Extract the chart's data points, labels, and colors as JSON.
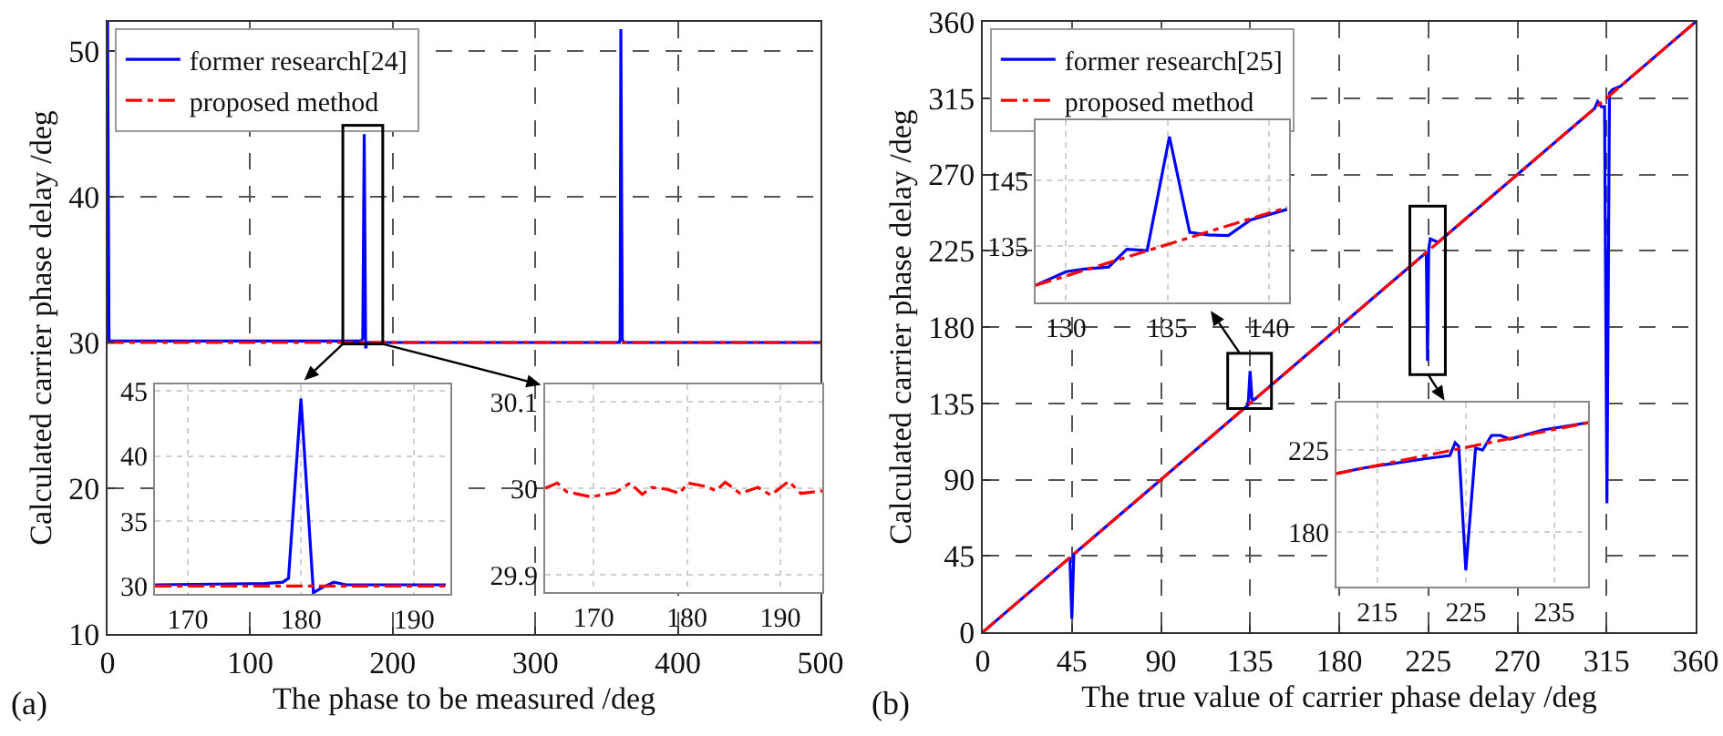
{
  "chart_data": [
    {
      "type": "line",
      "xlabel": "The phase to be measured /deg",
      "ylabel": "Calculated carrier phase delay /deg",
      "annotations": [
        "(a)"
      ],
      "xlim": [
        0,
        500
      ],
      "ylim": [
        10,
        52
      ],
      "xticks": [
        0,
        100,
        200,
        300,
        400,
        500
      ],
      "yticks": [
        10,
        20,
        30,
        40,
        50
      ],
      "grid": true,
      "legend": "top left",
      "series": [
        {
          "name": "former research[24]",
          "color": "#0000ff",
          "line_style": "solid",
          "x": [
            0,
            1,
            178,
            179,
            180,
            181,
            182,
            359,
            359.5,
            360,
            361,
            362,
            500
          ],
          "values": [
            52,
            30.1,
            30.1,
            30.3,
            44.3,
            29.6,
            30,
            30,
            30.3,
            51.5,
            30.2,
            30,
            30
          ]
        },
        {
          "name": "proposed method",
          "color": "#ff0000",
          "line_style": "dashed",
          "x": [
            0,
            500
          ],
          "values": [
            30,
            30
          ]
        }
      ]
    },
    {
      "type": "line",
      "xlim": [
        167.1,
        193.2
      ],
      "ylim": [
        29.4,
        45.5
      ],
      "xticks": [
        170,
        180,
        190
      ],
      "yticks": [
        30,
        35,
        40,
        45
      ],
      "grid": true,
      "series": [
        {
          "color": "#0000ff",
          "line_style": "solid",
          "x": [
            167.1,
            176.8,
            178.4,
            178.9,
            180,
            181.1,
            181.9,
            182.9,
            184,
            192.8
          ],
          "values": [
            30.1,
            30.2,
            30.3,
            30.6,
            44.4,
            29.5,
            29.9,
            30.3,
            30.1,
            30.1
          ]
        },
        {
          "color": "#ff0000",
          "line_style": "dashed",
          "x": [
            167.1,
            192.8
          ],
          "values": [
            30,
            30
          ]
        }
      ]
    },
    {
      "type": "line",
      "xlim": [
        164.8,
        194.5
      ],
      "ylim": [
        29.88,
        30.12
      ],
      "xticks": [
        170,
        180,
        190
      ],
      "yticks": [
        29.9,
        30,
        30.1
      ],
      "grid": true,
      "series": [
        {
          "color": "#ff0000",
          "line_style": "dashed",
          "x": [
            164.8,
            166.1,
            167.1,
            169.7,
            172.3,
            173.9,
            175.2,
            176.2,
            177.8,
            179.2,
            180.1,
            182.1,
            183.1,
            184.1,
            185.7,
            187.6,
            189,
            190.9,
            192.2,
            194.5
          ],
          "values": [
            30,
            30.006,
            29.996,
            29.99,
            29.995,
            30.006,
            29.993,
            30.001,
            29.999,
            29.994,
            30.006,
            30.002,
            29.997,
            30.007,
            29.994,
            30.001,
            29.992,
            30.008,
            29.994,
            29.997
          ]
        }
      ]
    },
    {
      "type": "line",
      "xlabel": "The true value of carrier phase delay /deg",
      "ylabel": "Calculated carrier phase delay /deg",
      "annotations": [
        "(b)"
      ],
      "xlim": [
        0,
        360
      ],
      "ylim": [
        0,
        360
      ],
      "xticks": [
        0,
        45,
        90,
        135,
        180,
        225,
        270,
        315,
        360
      ],
      "yticks": [
        0,
        45,
        90,
        135,
        180,
        225,
        270,
        315,
        360
      ],
      "grid": true,
      "legend": "top left",
      "series": [
        {
          "name": "former research[25]",
          "color": "#0000ff",
          "line_style": "solid",
          "x": [
            0,
            44,
            45,
            46,
            134,
            135,
            136,
            137,
            224,
            224.6,
            225.2,
            226,
            230,
            309,
            310.5,
            312.4,
            314,
            315.2,
            316.5,
            318,
            322,
            360
          ],
          "values": [
            0,
            44,
            8,
            46,
            134,
            154,
            137,
            137,
            224,
            160,
            226,
            232,
            230,
            309,
            313,
            310,
            310,
            76,
            318,
            320,
            322,
            360
          ]
        },
        {
          "name": "proposed method",
          "color": "#ff0000",
          "line_style": "dashed",
          "x": [
            0,
            360
          ],
          "values": [
            0,
            360
          ]
        }
      ]
    },
    {
      "type": "line",
      "xlim": [
        128.5,
        141
      ],
      "ylim": [
        126.4,
        154.2
      ],
      "xticks": [
        130,
        135,
        140
      ],
      "yticks": [
        135,
        145
      ],
      "grid": true,
      "series": [
        {
          "color": "#0000ff",
          "line_style": "solid",
          "x": [
            128.5,
            130,
            130.9,
            132.1,
            133,
            134,
            135.1,
            136.1,
            137,
            138,
            139.1,
            140.9
          ],
          "values": [
            129,
            131.1,
            131.5,
            131.8,
            134.5,
            134.3,
            151.7,
            137.1,
            136.7,
            136.6,
            139,
            140.6
          ]
        },
        {
          "color": "#ff0000",
          "line_style": "dashed",
          "x": [
            128.5,
            140.9
          ],
          "values": [
            129,
            140.9
          ]
        }
      ]
    },
    {
      "type": "line",
      "xlim": [
        210.4,
        238.8
      ],
      "ylim": [
        150,
        251
      ],
      "xticks": [
        215,
        225,
        235
      ],
      "yticks": [
        180,
        225
      ],
      "grid": true,
      "series": [
        {
          "color": "#0000ff",
          "line_style": "solid",
          "x": [
            210.4,
            213.3,
            217.4,
            220.1,
            223.2,
            223.8,
            224.2,
            225,
            226.1,
            226.9,
            227.9,
            228.9,
            230,
            233.7,
            238.8
          ],
          "values": [
            212,
            215,
            218,
            220,
            222,
            229,
            227,
            159,
            226,
            225,
            233,
            233,
            231,
            236,
            240
          ]
        },
        {
          "color": "#ff0000",
          "line_style": "dashed",
          "x": [
            210.4,
            238.8
          ],
          "values": [
            212,
            240
          ]
        }
      ]
    }
  ]
}
